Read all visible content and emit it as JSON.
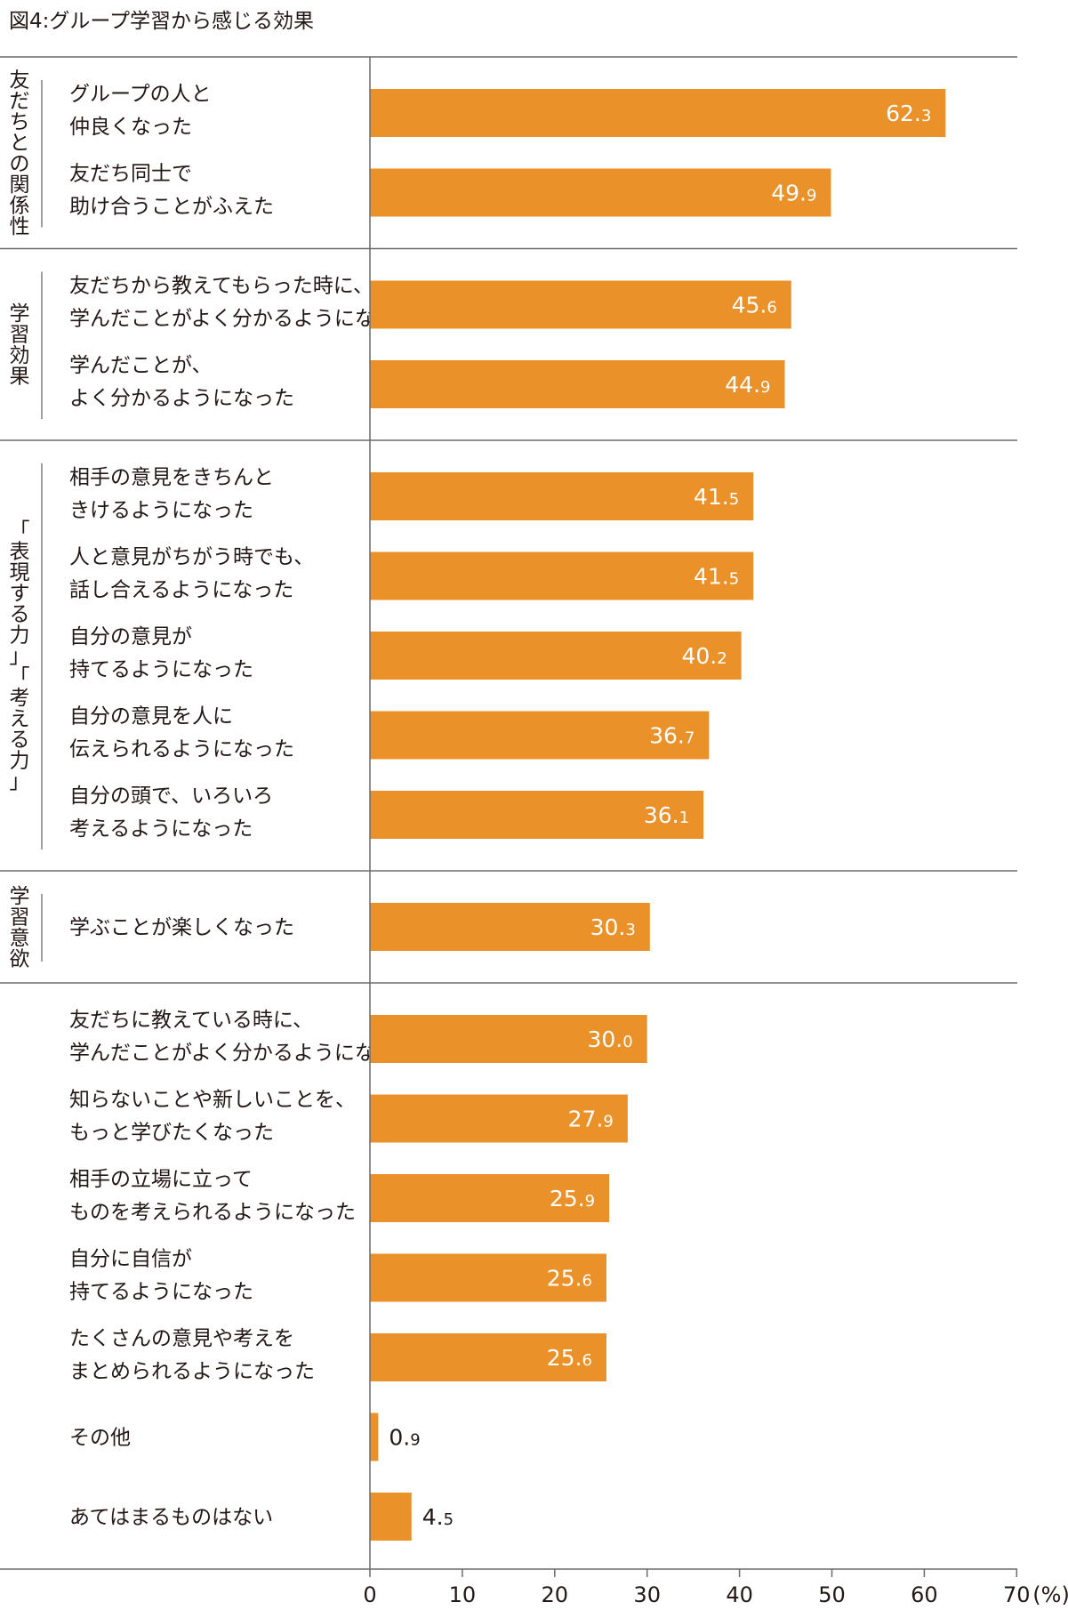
{
  "title": "図4:グループ学習から感じる効果",
  "chart_data": {
    "type": "bar",
    "orientation": "horizontal",
    "unit": "(%)",
    "xlim": [
      0,
      70
    ],
    "xticks": [
      0,
      10,
      20,
      30,
      40,
      50,
      60,
      70
    ],
    "bar_color": "#EB912A",
    "groups": [
      {
        "label": "友だちとの関係性",
        "count": 2
      },
      {
        "label": "学習効果",
        "count": 2
      },
      {
        "label": "「表現する力」「考える力」",
        "count": 5
      },
      {
        "label": "学習意欲",
        "count": 1
      },
      {
        "label": "",
        "count": 7
      }
    ],
    "categories": [
      [
        "グループの人と",
        "仲良くなった"
      ],
      [
        "友だち同士で",
        "助け合うことがふえた"
      ],
      [
        "友だちから教えてもらった時に、",
        "学んだことがよく分かるようになった"
      ],
      [
        "学んだことが、",
        "よく分かるようになった"
      ],
      [
        "相手の意見をきちんと",
        "きけるようになった"
      ],
      [
        "人と意見がちがう時でも、",
        "話し合えるようになった"
      ],
      [
        "自分の意見が",
        "持てるようになった"
      ],
      [
        "自分の意見を人に",
        "伝えられるようになった"
      ],
      [
        "自分の頭で、いろいろ",
        "考えるようになった"
      ],
      [
        "学ぶことが楽しくなった"
      ],
      [
        "友だちに教えている時に、",
        "学んだことがよく分かるようになった"
      ],
      [
        "知らないことや新しいことを、",
        "もっと学びたくなった"
      ],
      [
        "相手の立場に立って",
        "ものを考えられるようになった"
      ],
      [
        "自分に自信が",
        "持てるようになった"
      ],
      [
        "たくさんの意見や考えを",
        "まとめられるようになった"
      ],
      [
        "その他"
      ],
      [
        "あてはまるものはない"
      ]
    ],
    "values": [
      62.3,
      49.9,
      45.6,
      44.9,
      41.5,
      41.5,
      40.2,
      36.7,
      36.1,
      30.3,
      30.0,
      27.9,
      25.9,
      25.6,
      25.6,
      0.9,
      4.5
    ]
  }
}
